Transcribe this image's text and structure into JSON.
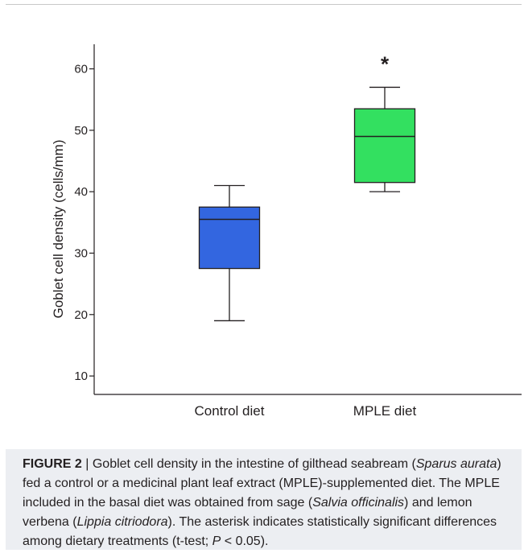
{
  "chart_data": {
    "type": "box",
    "ylabel": "Goblet cell density (cells/mm)",
    "ylim": [
      7,
      64
    ],
    "yticks": [
      10,
      20,
      30,
      40,
      50,
      60
    ],
    "categories": [
      "Control diet",
      "MPLE diet"
    ],
    "boxes": [
      {
        "category": "Control diet",
        "whisker_low": 19,
        "q1": 27.5,
        "median": 35.5,
        "q3": 37.5,
        "whisker_high": 41,
        "color": "#3366e0"
      },
      {
        "category": "MPLE diet",
        "whisker_low": 40,
        "q1": 41.5,
        "median": 49,
        "q3": 53.5,
        "whisker_high": 57,
        "color": "#33e060",
        "annotation": "*"
      }
    ]
  },
  "caption": {
    "label": "FIGURE 2",
    "separator": " | ",
    "parts": [
      {
        "text": "Goblet cell density in the intestine of gilthead seabream (",
        "italic": false
      },
      {
        "text": "Sparus aurata",
        "italic": true
      },
      {
        "text": ") fed a control or a medicinal plant leaf extract (MPLE)-supplemented diet. The MPLE included in the basal diet was obtained from sage (",
        "italic": false
      },
      {
        "text": "Salvia officinalis",
        "italic": true
      },
      {
        "text": ") and lemon verbena (",
        "italic": false
      },
      {
        "text": "Lippia citriodora",
        "italic": true
      },
      {
        "text": "). The asterisk indicates statistically significant differences among dietary treatments (t-test; ",
        "italic": false
      },
      {
        "text": "P",
        "italic": true
      },
      {
        "text": " < 0.05).",
        "italic": false
      }
    ]
  },
  "colors": {
    "axis": "#231f20",
    "panel": "#eceef2"
  }
}
